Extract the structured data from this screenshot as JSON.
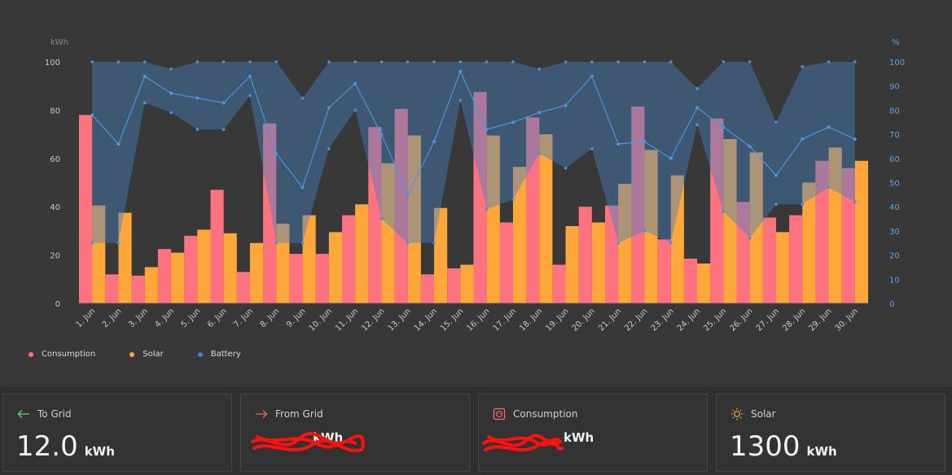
{
  "chart_data": {
    "type": "bar",
    "categories": [
      "1. Jun",
      "2. Jun",
      "3. Jun",
      "4. Jun",
      "5. Jun",
      "6. Jun",
      "7. Jun",
      "8. Jun",
      "9. Jun",
      "10. Jun",
      "11. Jun",
      "12. Jun",
      "13. Jun",
      "14. Jun",
      "15. Jun",
      "16. Jun",
      "17. Jun",
      "18. Jun",
      "19. Jun",
      "20. Jun",
      "21. Jun",
      "22. Jun",
      "23. Jun",
      "24. Jun",
      "25. Jun",
      "26. Jun",
      "27. Jun",
      "28. Jun",
      "29. Jun",
      "30. Jun"
    ],
    "series": [
      {
        "name": "Consumption",
        "axis": "kWh",
        "values": [
          78,
          12,
          11.5,
          22.5,
          28,
          47,
          13,
          74.5,
          20.5,
          20.5,
          36.5,
          73,
          80.5,
          12,
          14.5,
          87.5,
          33.5,
          77,
          16,
          40,
          40.5,
          81.5,
          26.5,
          18.5,
          76.5,
          42,
          35.5,
          36.5,
          59,
          56
        ]
      },
      {
        "name": "Solar",
        "axis": "kWh",
        "values": [
          40.5,
          37.5,
          15,
          21,
          30.5,
          29,
          25,
          33,
          36.5,
          29.5,
          41,
          58,
          69.5,
          39.5,
          16,
          69.5,
          56.5,
          70,
          32,
          33.5,
          49.5,
          63.5,
          53,
          16.5,
          68,
          62.5,
          29.5,
          50,
          64.5,
          59
        ]
      },
      {
        "name": "Battery",
        "axis": "%",
        "max": [
          100,
          100,
          100,
          97,
          100,
          100,
          100,
          100,
          85,
          100,
          100,
          100,
          100,
          100,
          100,
          100,
          100,
          97,
          100,
          100,
          100,
          100,
          100,
          89,
          100,
          100,
          75,
          98,
          100,
          100
        ],
        "min": [
          25,
          25,
          83,
          79,
          72,
          72,
          86,
          25,
          25,
          64,
          80,
          35,
          25,
          25,
          84,
          39,
          43,
          62,
          56,
          64,
          25,
          30,
          25,
          74,
          38,
          27,
          41,
          41,
          48,
          42
        ],
        "avg": [
          78,
          66,
          94,
          87,
          85,
          83,
          94,
          62,
          48,
          81,
          91,
          70,
          45,
          67,
          96,
          72,
          75,
          79,
          82,
          94,
          66,
          67,
          60,
          81,
          73,
          65,
          53,
          68,
          73,
          68
        ]
      }
    ],
    "y_left": {
      "label": "kWh",
      "ticks": [
        "0",
        "20",
        "40",
        "60",
        "80",
        "100"
      ],
      "range": [
        0,
        100
      ]
    },
    "y_right": {
      "label": "%",
      "ticks": [
        "0",
        "10",
        "20",
        "30",
        "40",
        "50",
        "60",
        "70",
        "80",
        "90",
        "100"
      ],
      "range": [
        0,
        100
      ]
    },
    "grid": false,
    "legend_position": "bottom-left",
    "colors": {
      "Consumption": "#ff7380",
      "Solar": "#ffa73b",
      "Battery": "#3c8dd6"
    }
  },
  "legend": [
    {
      "label": "Consumption",
      "color": "#ff6e7a"
    },
    {
      "label": "Solar",
      "color": "#ffa73b"
    },
    {
      "label": "Battery",
      "color": "#3b82d0"
    }
  ],
  "cards": [
    {
      "title": "To Grid",
      "icon": "arrow-left-icon",
      "value": "12.0",
      "unit": "kWh",
      "color": "#6fcf8a"
    },
    {
      "title": "From Grid",
      "icon": "arrow-right-icon",
      "value": "",
      "unit": "kWh",
      "color": "#ff5e5e"
    },
    {
      "title": "Consumption",
      "icon": "plug-icon",
      "value": "",
      "unit": "kWh",
      "color": "#ff6e7a"
    },
    {
      "title": "Solar",
      "icon": "sun-icon",
      "value": "1300",
      "unit": "kWh",
      "color": "#ffa73b"
    }
  ]
}
